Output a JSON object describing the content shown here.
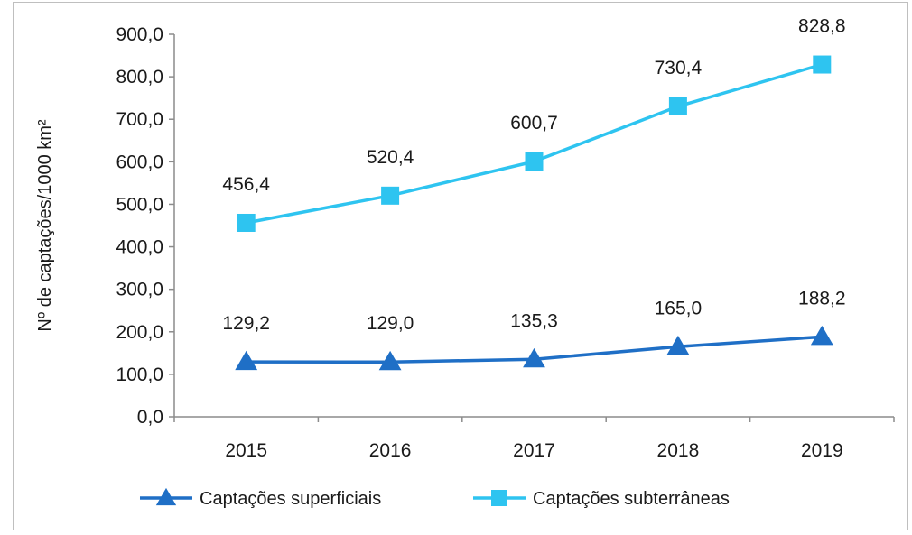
{
  "chart_data": {
    "type": "line",
    "categories": [
      "2015",
      "2016",
      "2017",
      "2018",
      "2019"
    ],
    "series": [
      {
        "name": "Captações superficiais",
        "values": [
          129.2,
          129.0,
          135.3,
          165.0,
          188.2
        ],
        "labels": [
          "129,2",
          "129,0",
          "135,3",
          "165,0",
          "188,2"
        ],
        "color": "#1f6fc6",
        "marker": "triangle"
      },
      {
        "name": "Captações subterrâneas",
        "values": [
          456.4,
          520.4,
          600.7,
          730.4,
          828.8
        ],
        "labels": [
          "456,4",
          "520,4",
          "600,7",
          "730,4",
          "828,8"
        ],
        "color": "#2ec4f0",
        "marker": "square"
      }
    ],
    "ylabel": "Nº de captações/1000 km²",
    "ylim": [
      0,
      900
    ],
    "yticks": [
      0,
      100,
      200,
      300,
      400,
      500,
      600,
      700,
      800,
      900
    ],
    "ytick_labels": [
      "0,0",
      "100,0",
      "200,0",
      "300,0",
      "400,0",
      "500,0",
      "600,0",
      "700,0",
      "800,0",
      "900,0"
    ],
    "grid": false,
    "legend_position": "bottom"
  }
}
